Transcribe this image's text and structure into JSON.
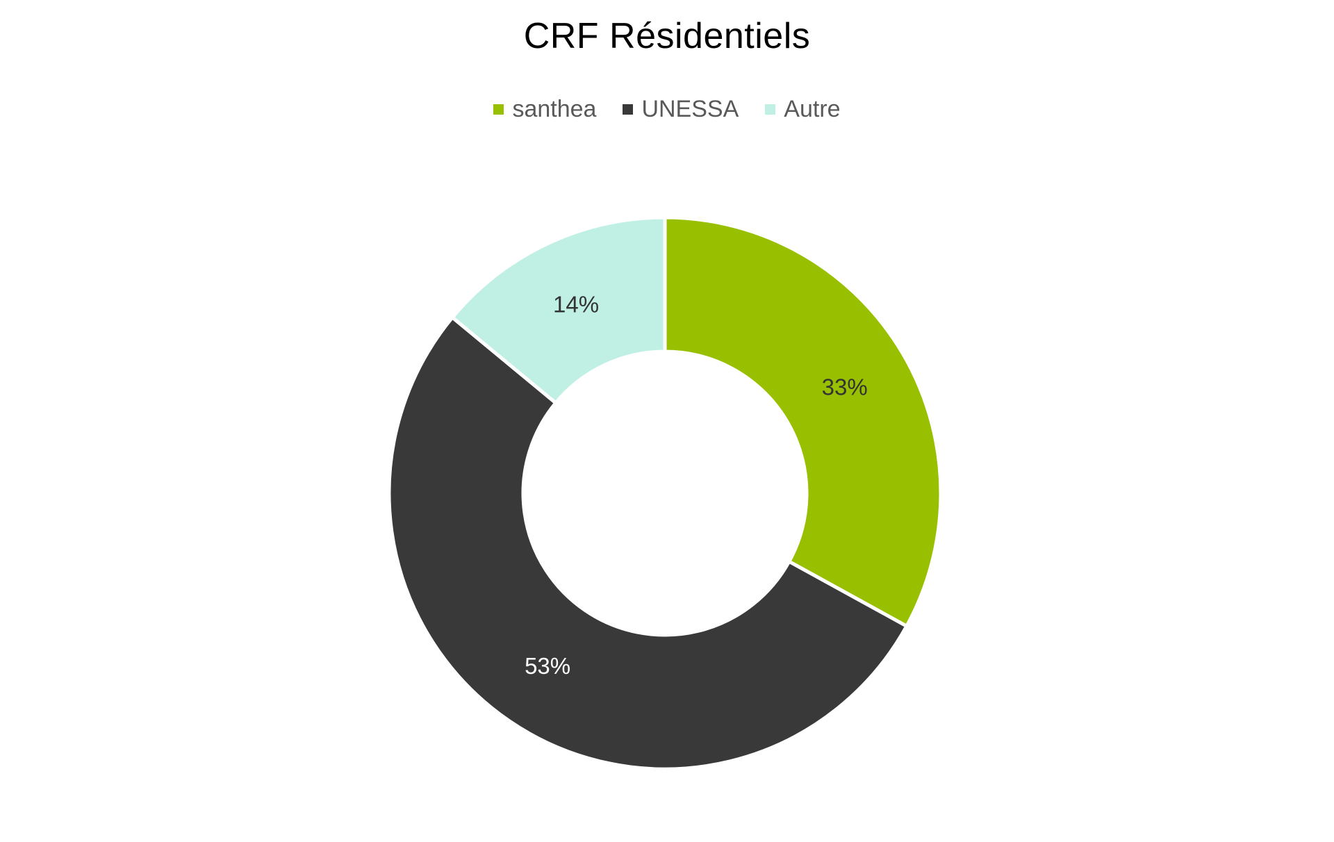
{
  "chart_data": {
    "type": "pie",
    "variant": "donut",
    "title": "CRF Résidentiels",
    "legend_position": "top",
    "series": [
      {
        "name": "",
        "categories": [
          "santhea",
          "UNESSA",
          "Autre"
        ],
        "values": [
          33,
          53,
          14
        ],
        "labels": [
          "33%",
          "53%",
          "14%"
        ],
        "colors": [
          "#99C000",
          "#3A393A",
          "#BFF0E3"
        ],
        "label_colors": [
          "#333333",
          "#ffffff",
          "#333333"
        ]
      }
    ]
  }
}
